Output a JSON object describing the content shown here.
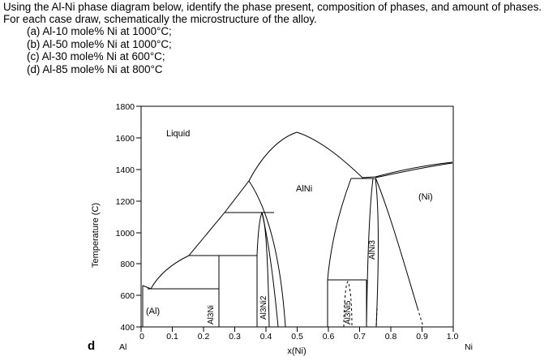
{
  "question": {
    "intro": "Using the Al-Ni phase diagram below, identify the phase present, composition of phases, and amount of phases. For each case draw, schematically the microstructure of the alloy.",
    "parts": [
      "(a) Al-10 mole% Ni at 1000°C;",
      "(b) Al-50 mole% Ni at 1000°C;",
      "(c) Al-30 mole% Ni at 600°C;",
      "(d) Al-85 mole% Ni at 800°C"
    ]
  },
  "diagram": {
    "panel_letter": "d",
    "y_axis_title": "Temperature (C)",
    "x_axis_title": "x(Ni)",
    "x_left_end_label": "Al",
    "x_right_end_label": "Ni",
    "y_ticks": [
      "1800",
      "1600",
      "1400",
      "1200",
      "1000",
      "800",
      "600",
      "400"
    ],
    "x_ticks": [
      "0",
      "0.1",
      "0.2",
      "0.3",
      "0.4",
      "0.5",
      "0.6",
      "0.7",
      "0.8",
      "0.9",
      "1.0"
    ],
    "phases": {
      "liquid": "Liquid",
      "alni": "AlNi",
      "ni": "(Ni)",
      "al": "(Al)",
      "al3ni": "Al3Ni",
      "al3ni2": "Al3Ni2",
      "alni3": "AlNi3",
      "al3ni5": "Al3Ni5"
    }
  }
}
